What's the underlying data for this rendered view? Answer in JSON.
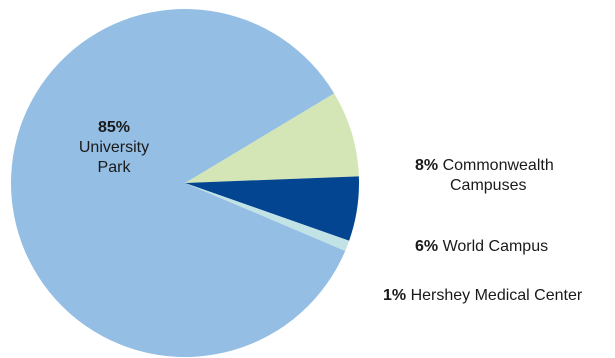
{
  "chart_data": {
    "type": "pie",
    "slices": [
      {
        "label_lines": [
          "University",
          "Park"
        ],
        "percent_label": "85%",
        "value": 85,
        "color": "#94bee3"
      },
      {
        "label_lines": [
          "Commonwealth",
          "Campuses"
        ],
        "percent_label": "8%",
        "value": 8,
        "color": "#d4e6b5"
      },
      {
        "label_lines": [
          "World Campus"
        ],
        "percent_label": "6%",
        "value": 6,
        "color": "#034591"
      },
      {
        "label_lines": [
          "Hershey Medical Center"
        ],
        "percent_label": "1%",
        "value": 1,
        "color": "#c2e3e6"
      }
    ]
  }
}
